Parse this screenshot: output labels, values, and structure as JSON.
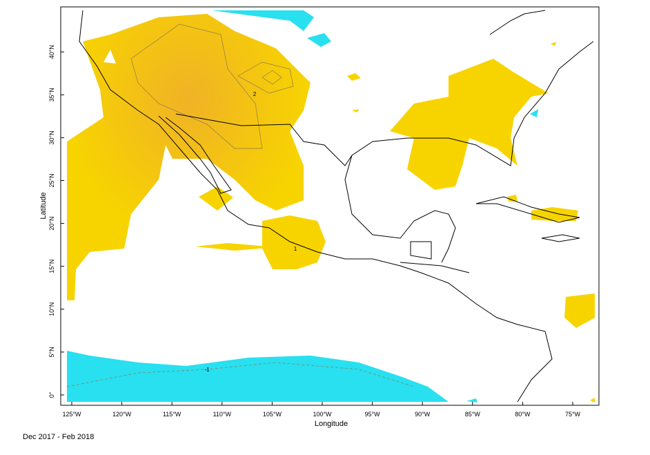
{
  "map": {
    "x_label": "Longitude",
    "y_label": "Latitude",
    "x_ticks": [
      "125°W",
      "120°W",
      "115°W",
      "110°W",
      "105°W",
      "100°W",
      "95°W",
      "90°W",
      "85°W",
      "80°W",
      "75°W"
    ],
    "y_ticks": [
      "0°",
      "5°N",
      "10°N",
      "15°N",
      "20°N",
      "25°N",
      "30°N",
      "35°N",
      "40°N"
    ],
    "contour_labels": [
      "2",
      "1",
      "-1"
    ]
  },
  "footer": "Dec 2017 - Feb 2018"
}
